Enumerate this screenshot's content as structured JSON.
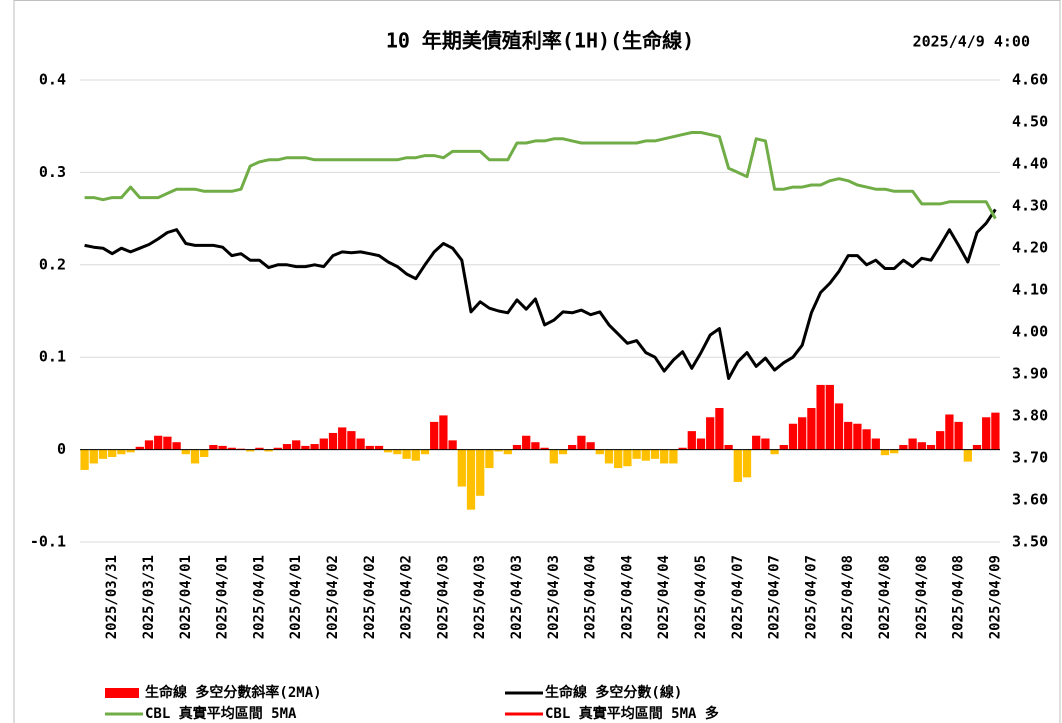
{
  "chart_data": {
    "type": "combo",
    "title": "10 年期美債殖利率(1H)(生命線)",
    "timestamp": "2025/4/9 4:00",
    "categories": [
      null,
      null,
      null,
      "2025/03/31",
      null,
      null,
      null,
      "2025/03/31",
      null,
      null,
      null,
      "2025/04/01",
      null,
      null,
      null,
      "2025/04/01",
      null,
      null,
      null,
      "2025/04/01",
      null,
      null,
      null,
      "2025/04/01",
      null,
      null,
      null,
      "2025/04/02",
      null,
      null,
      null,
      "2025/04/02",
      null,
      null,
      null,
      "2025/04/02",
      null,
      null,
      null,
      "2025/04/03",
      null,
      null,
      null,
      "2025/04/03",
      null,
      null,
      null,
      "2025/04/03",
      null,
      null,
      null,
      "2025/04/03",
      null,
      null,
      null,
      "2025/04/04",
      null,
      null,
      null,
      "2025/04/04",
      null,
      null,
      null,
      "2025/04/04",
      null,
      null,
      null,
      "2025/04/05",
      null,
      null,
      null,
      "2025/04/07",
      null,
      null,
      null,
      "2025/04/07",
      null,
      null,
      null,
      "2025/04/07",
      null,
      null,
      null,
      "2025/04/08",
      null,
      null,
      null,
      "2025/04/08",
      null,
      null,
      null,
      "2025/04/08",
      null,
      null,
      null,
      "2025/04/08",
      null,
      null,
      null,
      "2025/04/09"
    ],
    "ylim": [
      -0.1,
      0.4
    ],
    "yticks": [
      -0.1,
      0,
      0.1,
      0.2,
      0.3,
      0.4
    ],
    "y2lim": [
      3.5,
      4.6
    ],
    "y2ticks": [
      {
        "value": 3.5,
        "label": "3.50"
      },
      {
        "value": 3.6,
        "label": "3.60"
      },
      {
        "value": 3.7,
        "label": "3.70"
      },
      {
        "value": 3.8,
        "label": "3.80"
      },
      {
        "value": 3.9,
        "label": "3.90"
      },
      {
        "value": 4.0,
        "label": "4.00"
      },
      {
        "value": 4.1,
        "label": "4.10"
      },
      {
        "value": 4.2,
        "label": "4.20"
      },
      {
        "value": 4.3,
        "label": "4.30"
      },
      {
        "value": 4.4,
        "label": "4.40"
      },
      {
        "value": 4.5,
        "label": "4.50"
      },
      {
        "value": 4.6,
        "label": "4.60"
      }
    ],
    "grid": true,
    "legend": "bottom",
    "series": [
      {
        "name": "生命線 多空分數斜率(2MA)",
        "kind": "bar",
        "axis": "y",
        "color": "#ff0000",
        "negative_color": "#ffc000",
        "values": [
          -0.022,
          -0.015,
          -0.01,
          -0.008,
          -0.005,
          -0.003,
          0.003,
          0.01,
          0.015,
          0.014,
          0.008,
          -0.005,
          -0.015,
          -0.008,
          0.005,
          0.004,
          0.002,
          0.001,
          -0.002,
          0.002,
          -0.002,
          0.002,
          0.006,
          0.01,
          0.004,
          0.006,
          0.012,
          0.018,
          0.024,
          0.02,
          0.012,
          0.004,
          0.004,
          -0.003,
          -0.005,
          -0.01,
          -0.012,
          -0.005,
          0.03,
          0.037,
          0.01,
          -0.04,
          -0.065,
          -0.05,
          -0.02,
          -0.002,
          -0.005,
          0.005,
          0.015,
          0.008,
          0.002,
          -0.015,
          -0.005,
          0.005,
          0.015,
          0.008,
          -0.005,
          -0.015,
          -0.02,
          -0.018,
          -0.01,
          -0.012,
          -0.01,
          -0.015,
          -0.015,
          0.002,
          0.02,
          0.012,
          0.035,
          0.045,
          0.005,
          -0.035,
          -0.03,
          0.015,
          0.012,
          -0.005,
          0.005,
          0.028,
          0.035,
          0.045,
          0.07,
          0.07,
          0.05,
          0.03,
          0.028,
          0.022,
          0.012,
          -0.006,
          -0.004,
          0.005,
          0.012,
          0.008,
          0.005,
          0.02,
          0.038,
          0.03,
          -0.013,
          0.005,
          0.035,
          0.04
        ]
      },
      {
        "name": "生命線 多空分數(線)",
        "kind": "line",
        "axis": "y",
        "color": "#000000",
        "values": [
          0.221,
          0.219,
          0.218,
          0.212,
          0.218,
          0.214,
          0.218,
          0.222,
          0.228,
          0.235,
          0.238,
          0.223,
          0.221,
          0.221,
          0.221,
          0.219,
          0.21,
          0.212,
          0.205,
          0.205,
          0.197,
          0.2,
          0.2,
          0.198,
          0.198,
          0.2,
          0.198,
          0.21,
          0.214,
          0.213,
          0.214,
          0.212,
          0.21,
          0.203,
          0.198,
          0.19,
          0.185,
          0.2,
          0.214,
          0.223,
          0.218,
          0.205,
          0.149,
          0.16,
          0.153,
          0.15,
          0.148,
          0.162,
          0.152,
          0.163,
          0.135,
          0.14,
          0.149,
          0.148,
          0.151,
          0.146,
          0.149,
          0.135,
          0.125,
          0.115,
          0.118,
          0.105,
          0.1,
          0.085,
          0.097,
          0.106,
          0.088,
          0.105,
          0.124,
          0.131,
          0.077,
          0.095,
          0.105,
          0.09,
          0.099,
          0.086,
          0.094,
          0.1,
          0.113,
          0.148,
          0.17,
          0.18,
          0.193,
          0.21,
          0.21,
          0.2,
          0.205,
          0.196,
          0.196,
          0.205,
          0.198,
          0.207,
          0.205,
          0.221,
          0.238,
          0.221,
          0.203,
          0.235,
          0.245,
          0.26
        ]
      },
      {
        "name": "CBL 真實平均區間 5MA",
        "kind": "line",
        "axis": "y2",
        "color": "#70ad47",
        "values": [
          4.32,
          4.32,
          4.315,
          4.32,
          4.32,
          4.345,
          4.32,
          4.32,
          4.32,
          4.33,
          4.34,
          4.34,
          4.34,
          4.335,
          4.335,
          4.335,
          4.335,
          4.34,
          4.395,
          4.405,
          4.41,
          4.41,
          4.415,
          4.415,
          4.415,
          4.41,
          4.41,
          4.41,
          4.41,
          4.41,
          4.41,
          4.41,
          4.41,
          4.41,
          4.41,
          4.415,
          4.415,
          4.42,
          4.42,
          4.415,
          4.43,
          4.43,
          4.43,
          4.43,
          4.41,
          4.41,
          4.41,
          4.45,
          4.45,
          4.455,
          4.455,
          4.46,
          4.46,
          4.455,
          4.45,
          4.45,
          4.45,
          4.45,
          4.45,
          4.45,
          4.45,
          4.455,
          4.455,
          4.46,
          4.465,
          4.47,
          4.475,
          4.475,
          4.47,
          4.465,
          4.39,
          4.38,
          4.37,
          4.46,
          4.455,
          4.34,
          4.34,
          4.345,
          4.345,
          4.35,
          4.35,
          4.36,
          4.365,
          4.36,
          4.35,
          4.345,
          4.34,
          4.34,
          4.335,
          4.335,
          4.335,
          4.305,
          4.305,
          4.305,
          4.31,
          4.31,
          4.31,
          4.31,
          4.31,
          4.27
        ]
      },
      {
        "name": "CBL 真實平均區間 5MA 多",
        "kind": "line",
        "axis": "y2",
        "color": "#ff0000",
        "values": [
          null,
          null,
          null,
          null,
          null,
          null,
          null,
          null,
          null,
          null,
          null,
          null,
          null,
          null,
          null,
          null,
          null,
          null,
          null,
          null,
          null,
          null,
          null,
          null,
          null,
          null,
          null,
          null,
          null,
          null,
          null,
          null,
          null,
          null,
          null,
          null,
          null,
          null,
          null,
          null,
          null,
          null,
          null,
          null,
          null,
          null,
          null,
          null,
          null,
          null,
          null,
          null,
          null,
          null,
          null,
          null,
          null,
          null,
          null,
          null,
          null,
          null,
          null,
          null,
          null,
          null,
          null,
          null,
          null,
          null,
          null,
          null,
          null,
          null,
          null,
          null,
          null,
          null,
          null,
          null,
          null,
          null,
          null,
          null,
          null,
          null,
          null,
          null,
          null,
          null,
          null,
          null,
          null,
          null,
          null,
          null,
          null,
          null,
          null,
          null
        ]
      }
    ]
  }
}
